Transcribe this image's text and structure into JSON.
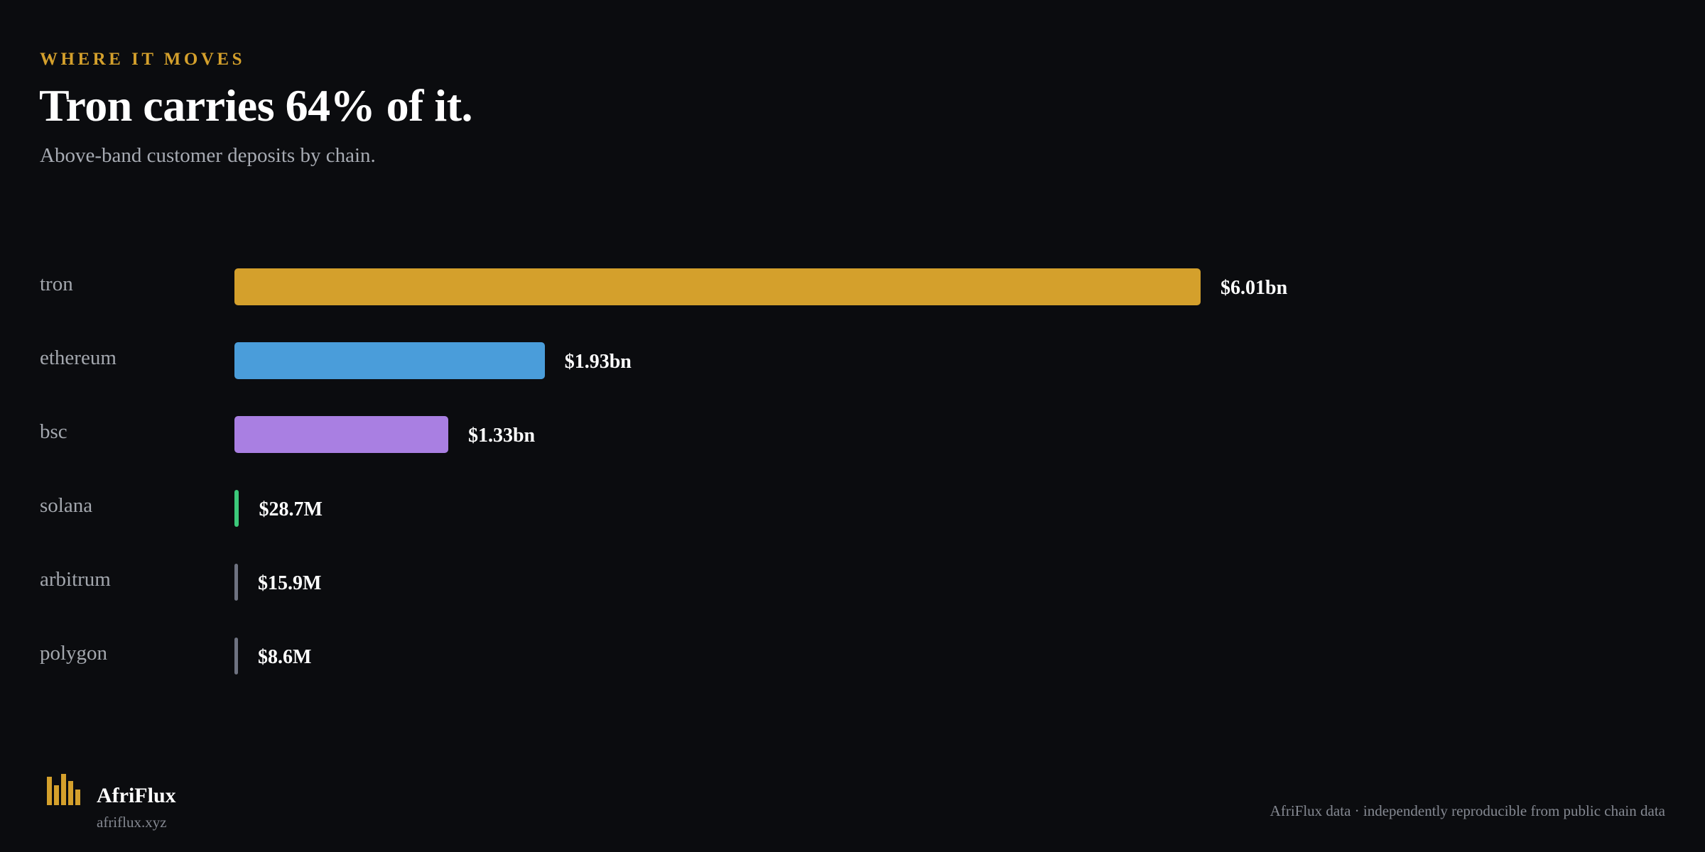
{
  "header": {
    "eyebrow": "WHERE IT MOVES",
    "title": "Tron carries 64% of it.",
    "subtitle": "Above-band customer deposits by chain."
  },
  "chart_data": {
    "type": "bar",
    "orientation": "horizontal",
    "categories": [
      "tron",
      "ethereum",
      "bsc",
      "solana",
      "arbitrum",
      "polygon"
    ],
    "values": [
      6010000000,
      1930000000,
      1330000000,
      28700000,
      15900000,
      8600000
    ],
    "value_labels": [
      "$6.01bn",
      "$1.93bn",
      "$1.33bn",
      "$28.7M",
      "$15.9M",
      "$8.6M"
    ],
    "colors": [
      "#d4a02c",
      "#4a9dda",
      "#a97fe2",
      "#3cc97a",
      "#6e7280",
      "#6e7280"
    ],
    "unit": "USD",
    "grid": false,
    "legend": "none"
  },
  "footer": {
    "brand": "AfriFlux",
    "url": "afriflux.xyz",
    "note": "AfriFlux data · independently reproducible from public chain data"
  },
  "icons": {
    "logo": "bar-chart-logo-icon"
  }
}
